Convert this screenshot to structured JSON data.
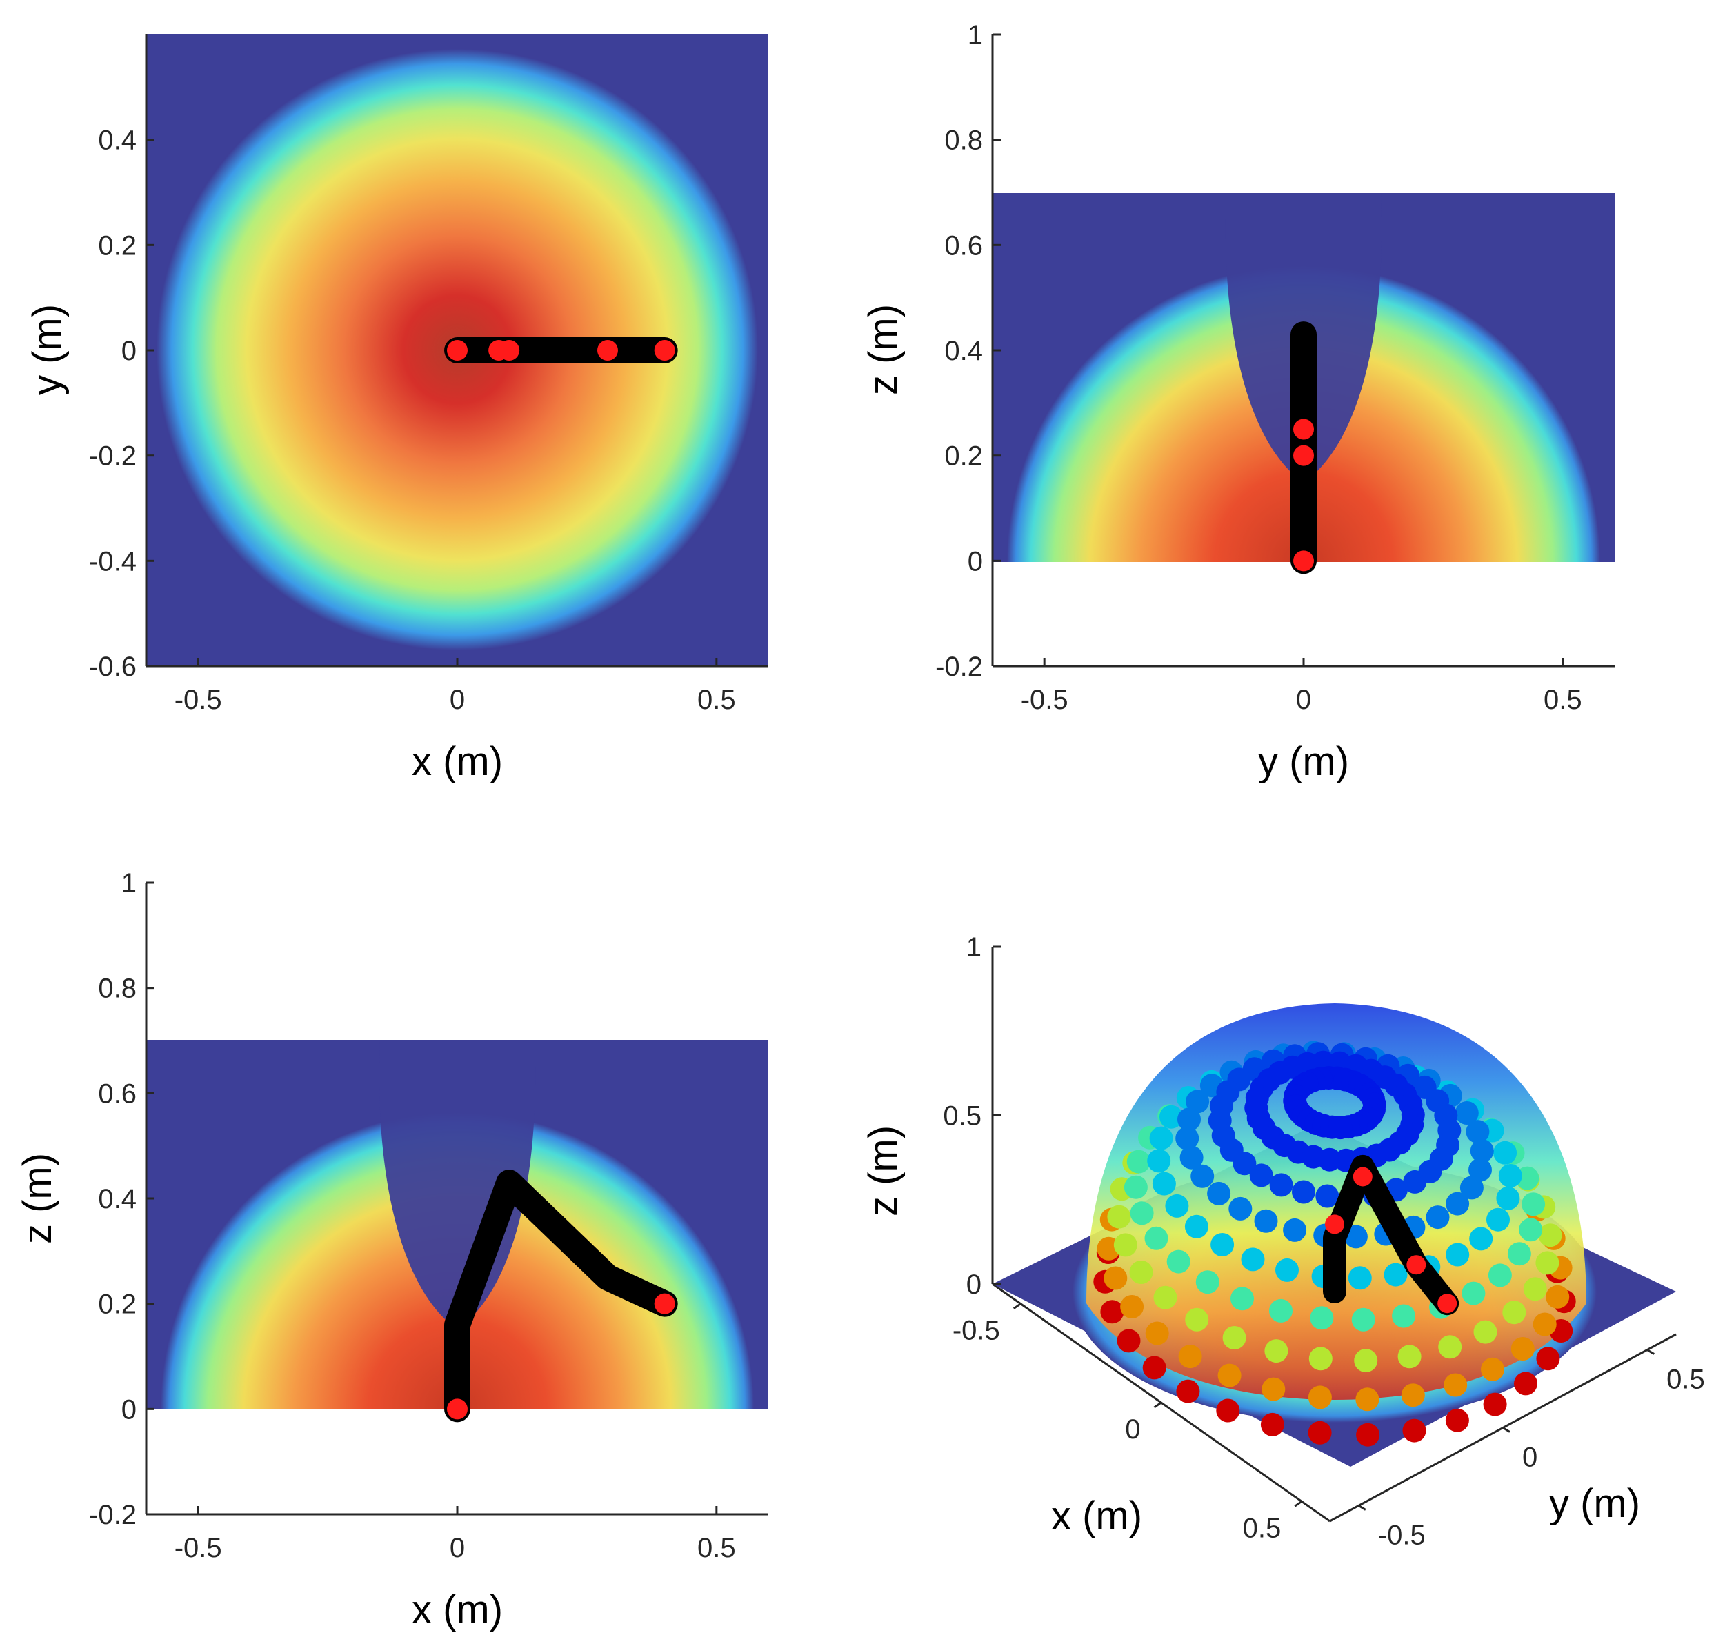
{
  "chart_data": [
    {
      "id": "top-left",
      "type": "heatmap",
      "view": "xy",
      "xlabel": "x (m)",
      "ylabel": "y (m)",
      "xlim": [
        -0.6,
        0.6
      ],
      "ylim": [
        -0.6,
        0.6
      ],
      "xticks": [
        -0.5,
        0,
        0.5
      ],
      "xtick_labels": [
        "-0.5",
        "0",
        "0.5"
      ],
      "yticks": [
        -0.6,
        -0.4,
        -0.2,
        0,
        0.2,
        0.4
      ],
      "ytick_labels": [
        "-0.6",
        "-0.4",
        "-0.2",
        "0",
        "0.2",
        "0.4"
      ],
      "field_extent": {
        "x": [
          -0.6,
          0.6
        ],
        "y": [
          -0.6,
          0.6
        ]
      },
      "field_shape": "disk",
      "field_radius": 0.57,
      "colormap": "jet",
      "arm_path": [
        [
          0.0,
          0.0
        ],
        [
          0.4,
          0.0
        ]
      ],
      "joints": [
        [
          0.0,
          0.0
        ],
        [
          0.08,
          0.0
        ],
        [
          0.1,
          0.0
        ],
        [
          0.29,
          0.0
        ],
        [
          0.4,
          0.0
        ]
      ]
    },
    {
      "id": "top-right",
      "type": "heatmap",
      "view": "yz",
      "xlabel": "y (m)",
      "ylabel": "z (m)",
      "xlim": [
        -0.6,
        0.6
      ],
      "ylim": [
        -0.2,
        1.0
      ],
      "xticks": [
        -0.5,
        0,
        0.5
      ],
      "xtick_labels": [
        "-0.5",
        "0",
        "0.5"
      ],
      "yticks": [
        -0.2,
        0,
        0.2,
        0.4,
        0.6,
        0.8,
        1.0
      ],
      "ytick_labels": [
        "-0.2",
        "0",
        "0.2",
        "0.4",
        "0.6",
        "0.8",
        "1"
      ],
      "field_extent": {
        "x": [
          -0.6,
          0.6
        ],
        "y": [
          0,
          0.7
        ]
      },
      "field_shape": "half-disk",
      "field_radius": 0.57,
      "colormap": "jet",
      "arm_path": [
        [
          0.0,
          0.0
        ],
        [
          0.0,
          0.43
        ]
      ],
      "joints": [
        [
          0.0,
          0.0
        ],
        [
          0.0,
          0.2
        ],
        [
          0.0,
          0.25
        ]
      ]
    },
    {
      "id": "bottom-left",
      "type": "heatmap",
      "view": "xz",
      "xlabel": "x (m)",
      "ylabel": "z (m)",
      "xlim": [
        -0.6,
        0.6
      ],
      "ylim": [
        -0.2,
        1.0
      ],
      "xticks": [
        -0.5,
        0,
        0.5
      ],
      "xtick_labels": [
        "-0.5",
        "0",
        "0.5"
      ],
      "yticks": [
        -0.2,
        0,
        0.2,
        0.4,
        0.6,
        0.8,
        1.0
      ],
      "ytick_labels": [
        "-0.2",
        "0",
        "0.2",
        "0.4",
        "0.6",
        "0.8",
        "1"
      ],
      "field_extent": {
        "x": [
          -0.6,
          0.6
        ],
        "y": [
          0,
          0.7
        ]
      },
      "field_shape": "half-disk",
      "field_radius": 0.57,
      "colormap": "jet",
      "arm_path": [
        [
          0.0,
          0.0
        ],
        [
          0.0,
          0.16
        ],
        [
          0.1,
          0.43
        ],
        [
          0.29,
          0.25
        ],
        [
          0.4,
          0.2
        ]
      ],
      "joints": [
        [
          0.0,
          0.0
        ],
        [
          0.4,
          0.2
        ]
      ]
    },
    {
      "id": "bottom-right",
      "type": "scatter",
      "view": "3d",
      "xlabel": "x (m)",
      "ylabel": "y (m)",
      "zlabel": "z (m)",
      "xticks": [
        -0.5,
        0,
        0.5
      ],
      "xtick_labels": [
        "-0.5",
        "0",
        "0.5"
      ],
      "yticks": [
        -0.5,
        0,
        0.5
      ],
      "ytick_labels": [
        "-0.5",
        "0",
        "0.5"
      ],
      "zticks": [
        0,
        0.5,
        1
      ],
      "ztick_labels": [
        "0",
        "0.5",
        "1"
      ],
      "xlim": [
        -0.6,
        0.6
      ],
      "ylim": [
        -0.6,
        0.6
      ],
      "zlim": [
        0,
        1
      ],
      "floor_extent": [
        -0.6,
        0.6
      ],
      "hemisphere_radius": 0.57,
      "colormap": "jet",
      "arm_path": [
        [
          0.0,
          0.0,
          0.0
        ],
        [
          0.0,
          0.0,
          0.16
        ],
        [
          0.1,
          0.0,
          0.43
        ],
        [
          0.29,
          0.0,
          0.25
        ],
        [
          0.4,
          0.0,
          0.2
        ]
      ],
      "joints": [
        [
          0.0,
          0.0,
          0.2
        ],
        [
          0.1,
          0.0,
          0.4
        ],
        [
          0.29,
          0.0,
          0.25
        ],
        [
          0.4,
          0.0,
          0.2
        ]
      ]
    }
  ]
}
